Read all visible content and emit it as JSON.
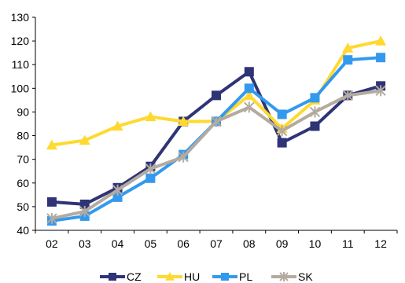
{
  "chart_data": {
    "type": "line",
    "title": "",
    "xlabel": "",
    "ylabel": "",
    "categories": [
      "02",
      "03",
      "04",
      "05",
      "06",
      "07",
      "08",
      "09",
      "10",
      "11",
      "12"
    ],
    "ylim": [
      40,
      130
    ],
    "yticks": [
      "40",
      "50",
      "60",
      "70",
      "80",
      "90",
      "100",
      "110",
      "120",
      "130"
    ],
    "grid": false,
    "legend_position": "bottom",
    "series": [
      {
        "name": "CZ",
        "color": "#2e3476",
        "marker": "square",
        "values": [
          52,
          51,
          58,
          67,
          86,
          97,
          107,
          77,
          84,
          97,
          101
        ]
      },
      {
        "name": "HU",
        "color": "#ffd92f",
        "marker": "triangle",
        "values": [
          76,
          78,
          84,
          88,
          86,
          86,
          97,
          83,
          95,
          117,
          120
        ]
      },
      {
        "name": "PL",
        "color": "#3399ee",
        "marker": "square",
        "values": [
          44,
          46,
          54,
          62,
          72,
          86,
          100,
          89,
          96,
          112,
          113
        ]
      },
      {
        "name": "SK",
        "color": "#b4aaa0",
        "marker": "star",
        "values": [
          45,
          48,
          57,
          66,
          71,
          86,
          92,
          82,
          90,
          97,
          99
        ]
      }
    ]
  }
}
